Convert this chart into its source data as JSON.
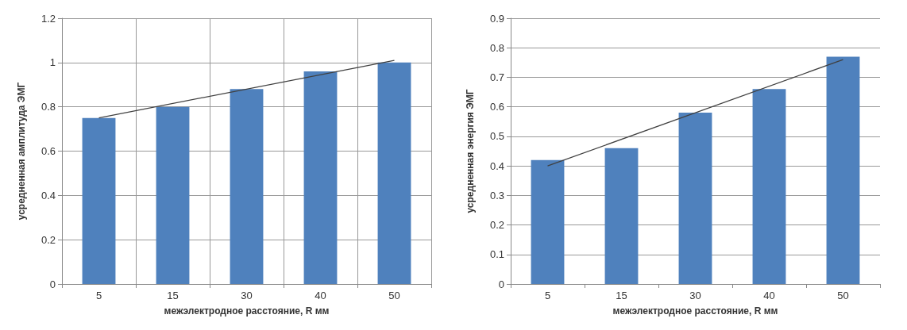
{
  "chart_data": [
    {
      "type": "bar",
      "xlabel": "межэлектродное расстояние, R мм",
      "ylabel": "усредненная амплитуда ЭМГ",
      "categories": [
        "5",
        "15",
        "30",
        "40",
        "50"
      ],
      "ylim": [
        0,
        1.2
      ],
      "yticks": [
        0,
        0.2,
        0.4,
        0.6,
        0.8,
        1,
        1.2
      ],
      "grid": true,
      "series": [
        {
          "color": "#4f81bd",
          "values": [
            0.75,
            0.8,
            0.88,
            0.96,
            1.0
          ]
        },
        {
          "type": "line",
          "color": "#404040",
          "x": [
            "5",
            "50"
          ],
          "values": [
            0.75,
            1.01
          ],
          "marker": "none"
        }
      ]
    },
    {
      "type": "bar",
      "xlabel": "межэлектродное расстояние, R мм",
      "ylabel": "усредненная энергия ЭМГ",
      "categories": [
        "5",
        "15",
        "30",
        "40",
        "50"
      ],
      "ylim": [
        0,
        0.9
      ],
      "yticks": [
        0,
        0.1,
        0.2,
        0.3,
        0.4,
        0.5,
        0.6,
        0.7,
        0.8,
        0.9
      ],
      "grid": "y",
      "series": [
        {
          "color": "#4f81bd",
          "values": [
            0.42,
            0.46,
            0.58,
            0.66,
            0.77
          ]
        },
        {
          "type": "line",
          "color": "#404040",
          "x": [
            "5",
            "50"
          ],
          "values": [
            0.4,
            0.76
          ],
          "marker": "none"
        }
      ]
    }
  ]
}
